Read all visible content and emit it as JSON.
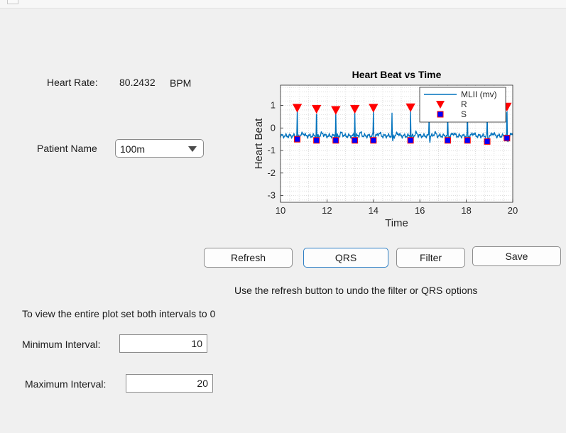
{
  "heart_rate": {
    "label": "Heart Rate:",
    "value": "80.2432",
    "unit": "BPM"
  },
  "patient": {
    "label": "Patient Name",
    "selected": "100m"
  },
  "buttons": {
    "refresh": "Refresh",
    "qrs": "QRS",
    "filter": "Filter",
    "save": "Save"
  },
  "info": {
    "refresh_hint": "Use the refresh button to undo the filter or QRS options",
    "interval_hint": "To view the entire plot set both intervals to 0"
  },
  "intervals": {
    "min_label": "Minimum Interval:",
    "min_value": "10",
    "max_label": "Maximum Interval:",
    "max_value": "20"
  },
  "colors": {
    "signal": "#0072bd",
    "r_marker": "#ff0000",
    "s_marker": "#0000ff",
    "s_marker_edge": "#ff0000"
  },
  "chart_data": {
    "type": "line",
    "title": "Heart Beat vs Time",
    "xlabel": "Time",
    "ylabel": "Heart Beat",
    "xlim": [
      10,
      20
    ],
    "ylim": [
      -3.3,
      1.9
    ],
    "xticks": [
      10,
      12,
      14,
      16,
      18,
      20
    ],
    "yticks": [
      1,
      0,
      -1,
      -2,
      -3
    ],
    "grid": "minor-dotted",
    "legend_position": "top-right",
    "series": [
      {
        "name": "MLII (mv)",
        "baseline": -0.35,
        "beats_x": [
          10.72,
          11.55,
          12.38,
          13.2,
          14.0,
          14.8,
          15.6,
          16.4,
          17.2,
          18.05,
          18.9,
          19.75
        ],
        "beats_peak": [
          0.85,
          0.82,
          0.78,
          0.82,
          0.85,
          0.6,
          0.85,
          0.8,
          0.8,
          0.75,
          0.7,
          0.9
        ]
      },
      {
        "name": "R",
        "marker": "triangle-down",
        "x": [
          10.72,
          11.55,
          12.38,
          13.2,
          14.0,
          15.6,
          16.4,
          17.2,
          18.05,
          18.9,
          19.75
        ],
        "y": [
          0.9,
          0.85,
          0.8,
          0.85,
          0.9,
          0.92,
          0.85,
          0.85,
          0.8,
          0.75,
          0.95
        ]
      },
      {
        "name": "S",
        "marker": "square",
        "x": [
          10.72,
          11.55,
          12.38,
          13.2,
          14.0,
          15.6,
          17.2,
          18.05,
          18.9,
          19.75
        ],
        "y": [
          -0.5,
          -0.55,
          -0.55,
          -0.55,
          -0.55,
          -0.55,
          -0.55,
          -0.55,
          -0.6,
          -0.45
        ]
      }
    ]
  }
}
